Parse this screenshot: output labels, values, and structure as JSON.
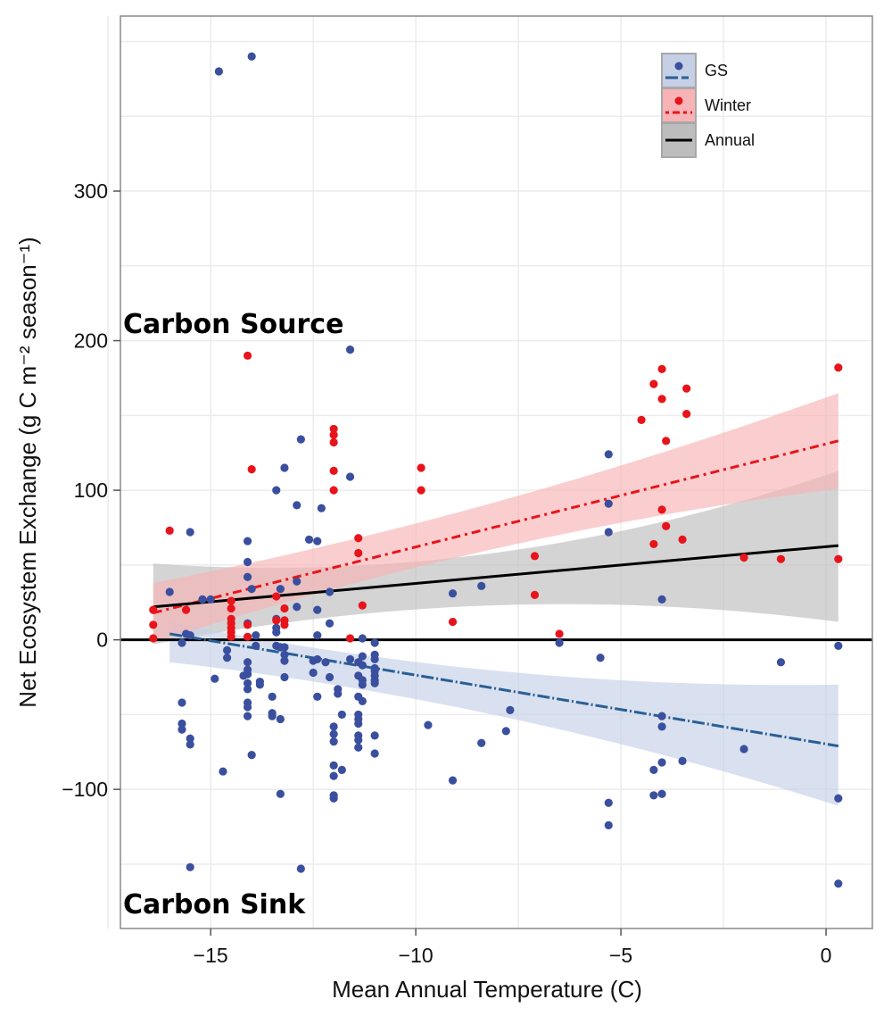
{
  "chart_data": {
    "type": "scatter",
    "title": "",
    "xlabel": "Mean Annual Temperature (C)",
    "ylabel": "Net Ecosystem Exchange (g C m⁻² season⁻¹)",
    "xlim": [
      -17.2,
      1.13
    ],
    "ylim": [
      -193,
      417
    ],
    "grid": true,
    "x_ticks": [
      -15,
      -10,
      -5,
      0
    ],
    "x_tick_labels": [
      "−15",
      "−10",
      "−5",
      "0"
    ],
    "y_ticks": [
      300,
      200,
      100,
      0,
      -100
    ],
    "y_tick_labels": [
      "300",
      "200",
      "100",
      "0",
      "−100"
    ],
    "legend_position": "top-right",
    "annotations": [
      {
        "text": "Carbon Source",
        "x": -17.0,
        "y": 205
      },
      {
        "text": "Carbon Sink",
        "x": -17.0,
        "y": -177
      }
    ],
    "reference_line_y": 0,
    "series": [
      {
        "name": "GS",
        "color": "#3a4f9e",
        "line_color": "#2a5f95",
        "band_color": "#c5cfe6",
        "fit": {
          "x": [
            -16.0,
            0.3
          ],
          "y": [
            4,
            -71
          ]
        },
        "band": {
          "x": [
            -16.0,
            -9.0,
            0.3
          ],
          "lower": [
            -15,
            -45,
            -111
          ],
          "upper": [
            12,
            -18,
            -30
          ]
        },
        "points": [
          [
            -14.8,
            380
          ],
          [
            -14.0,
            390
          ],
          [
            -11.6,
            194
          ],
          [
            -12.8,
            134
          ],
          [
            -13.2,
            115
          ],
          [
            -11.6,
            109
          ],
          [
            -13.4,
            100
          ],
          [
            -12.9,
            90
          ],
          [
            -12.3,
            88
          ],
          [
            -15.5,
            72
          ],
          [
            -14.1,
            66
          ],
          [
            -12.6,
            67
          ],
          [
            -12.4,
            66
          ],
          [
            -14.1,
            52
          ],
          [
            -14.1,
            42
          ],
          [
            -16.0,
            32
          ],
          [
            -12.9,
            39
          ],
          [
            -13.3,
            34
          ],
          [
            -14.0,
            34
          ],
          [
            -12.1,
            32
          ],
          [
            -15.2,
            27
          ],
          [
            -15.0,
            27
          ],
          [
            -12.9,
            22
          ],
          [
            -12.4,
            20
          ],
          [
            -12.1,
            11
          ],
          [
            -14.1,
            11
          ],
          [
            -13.4,
            14
          ],
          [
            -13.4,
            8
          ],
          [
            -13.4,
            5
          ],
          [
            -15.6,
            4
          ],
          [
            -15.5,
            3
          ],
          [
            -13.9,
            3
          ],
          [
            -12.4,
            3
          ],
          [
            -11.3,
            1
          ],
          [
            -11.0,
            -2
          ],
          [
            -15.7,
            -2
          ],
          [
            -14.6,
            -7
          ],
          [
            -14.6,
            -12
          ],
          [
            -13.9,
            -4
          ],
          [
            -14.1,
            -15
          ],
          [
            -14.1,
            -20
          ],
          [
            -14.1,
            -23
          ],
          [
            -14.2,
            -24
          ],
          [
            -14.9,
            -26
          ],
          [
            -14.1,
            -29
          ],
          [
            -14.1,
            -33
          ],
          [
            -13.8,
            -28
          ],
          [
            -13.8,
            -30
          ],
          [
            -13.4,
            -4
          ],
          [
            -13.3,
            -5
          ],
          [
            -13.2,
            -5
          ],
          [
            -13.2,
            -10
          ],
          [
            -13.2,
            -14
          ],
          [
            -13.2,
            -25
          ],
          [
            -13.5,
            -38
          ],
          [
            -12.4,
            -38
          ],
          [
            -12.5,
            -14
          ],
          [
            -12.4,
            -13
          ],
          [
            -12.2,
            -15
          ],
          [
            -12.5,
            -22
          ],
          [
            -12.1,
            -25
          ],
          [
            -11.9,
            -33
          ],
          [
            -11.9,
            -36
          ],
          [
            -11.6,
            -13
          ],
          [
            -11.3,
            -11
          ],
          [
            -11.3,
            -17
          ],
          [
            -11.4,
            -15
          ],
          [
            -11.4,
            -24
          ],
          [
            -11.3,
            -27
          ],
          [
            -11.3,
            -30
          ],
          [
            -11.0,
            -10
          ],
          [
            -11.0,
            -13
          ],
          [
            -11.0,
            -19
          ],
          [
            -11.0,
            -21
          ],
          [
            -11.0,
            -24
          ],
          [
            -11.0,
            -27
          ],
          [
            -11.0,
            -29
          ],
          [
            -11.4,
            -38
          ],
          [
            -11.3,
            -41
          ],
          [
            -15.7,
            -42
          ],
          [
            -14.1,
            -42
          ],
          [
            -14.1,
            -45
          ],
          [
            -14.1,
            -51
          ],
          [
            -13.5,
            -49
          ],
          [
            -13.5,
            -51
          ],
          [
            -13.3,
            -53
          ],
          [
            -11.8,
            -50
          ],
          [
            -11.4,
            -50
          ],
          [
            -11.4,
            -53
          ],
          [
            -11.4,
            -56
          ],
          [
            -12.0,
            -58
          ],
          [
            -12.0,
            -63
          ],
          [
            -12.0,
            -68
          ],
          [
            -11.4,
            -64
          ],
          [
            -11.4,
            -67
          ],
          [
            -11.4,
            -72
          ],
          [
            -11.0,
            -64
          ],
          [
            -11.0,
            -76
          ],
          [
            -15.7,
            -56
          ],
          [
            -15.7,
            -60
          ],
          [
            -15.5,
            -66
          ],
          [
            -15.5,
            -70
          ],
          [
            -14.0,
            -77
          ],
          [
            -14.7,
            -88
          ],
          [
            -12.0,
            -84
          ],
          [
            -12.0,
            -91
          ],
          [
            -11.8,
            -87
          ],
          [
            -13.3,
            -103
          ],
          [
            -12.0,
            -104
          ],
          [
            -12.0,
            -106
          ],
          [
            -15.5,
            -152
          ],
          [
            -12.8,
            -153
          ],
          [
            -5.3,
            124
          ],
          [
            -5.3,
            91
          ],
          [
            -5.3,
            72
          ],
          [
            -9.1,
            31
          ],
          [
            -8.4,
            36
          ],
          [
            -4.0,
            27
          ],
          [
            -6.5,
            -2
          ],
          [
            -5.5,
            -12
          ],
          [
            0.3,
            -4
          ],
          [
            -1.1,
            -15
          ],
          [
            -9.7,
            -57
          ],
          [
            -7.7,
            -47
          ],
          [
            -7.8,
            -61
          ],
          [
            -8.4,
            -69
          ],
          [
            -9.1,
            -94
          ],
          [
            -4.0,
            -51
          ],
          [
            -4.0,
            -58
          ],
          [
            -2.0,
            -73
          ],
          [
            -3.5,
            -81
          ],
          [
            -4.0,
            -82
          ],
          [
            -4.2,
            -87
          ],
          [
            -4.2,
            -104
          ],
          [
            -4.0,
            -103
          ],
          [
            0.3,
            -106
          ],
          [
            -5.3,
            -109
          ],
          [
            -5.3,
            -124
          ],
          [
            0.3,
            -163
          ]
        ]
      },
      {
        "name": "Winter",
        "color": "#e8141b",
        "line_color": "#e8141b",
        "band_color": "#f7b3b6",
        "fit": {
          "x": [
            -16.4,
            0.3
          ],
          "y": [
            18,
            133
          ]
        },
        "band": {
          "x": [
            -16.4,
            -9.0,
            0.3
          ],
          "lower": [
            -2,
            55,
            101
          ],
          "upper": [
            38,
            85,
            165
          ]
        },
        "points": [
          [
            -16.0,
            73
          ],
          [
            -16.4,
            20
          ],
          [
            -16.4,
            10
          ],
          [
            -16.4,
            1
          ],
          [
            -15.6,
            20
          ],
          [
            -14.5,
            26
          ],
          [
            -14.5,
            21
          ],
          [
            -14.5,
            14
          ],
          [
            -14.5,
            11
          ],
          [
            -14.5,
            8
          ],
          [
            -14.5,
            5
          ],
          [
            -14.5,
            2
          ],
          [
            -14.1,
            10
          ],
          [
            -14.1,
            2
          ],
          [
            -13.4,
            29
          ],
          [
            -13.4,
            13
          ],
          [
            -13.2,
            21
          ],
          [
            -13.2,
            13
          ],
          [
            -13.2,
            10
          ],
          [
            -11.4,
            68
          ],
          [
            -11.4,
            58
          ],
          [
            -11.3,
            23
          ],
          [
            -11.6,
            1
          ],
          [
            -14.1,
            190
          ],
          [
            -12.0,
            141
          ],
          [
            -12.0,
            137
          ],
          [
            -12.0,
            132
          ],
          [
            -14.0,
            114
          ],
          [
            -12.0,
            113
          ],
          [
            -12.0,
            100
          ],
          [
            -9.87,
            115
          ],
          [
            -9.87,
            100
          ],
          [
            -4.0,
            181
          ],
          [
            -4.2,
            171
          ],
          [
            -3.4,
            168
          ],
          [
            -4.0,
            161
          ],
          [
            -3.4,
            151
          ],
          [
            -4.5,
            147
          ],
          [
            -3.9,
            133
          ],
          [
            0.3,
            182
          ],
          [
            -4.0,
            87
          ],
          [
            -3.9,
            76
          ],
          [
            -3.5,
            67
          ],
          [
            -4.2,
            64
          ],
          [
            -7.1,
            56
          ],
          [
            -7.1,
            30
          ],
          [
            -9.1,
            12
          ],
          [
            -6.5,
            4
          ],
          [
            -2.0,
            55
          ],
          [
            -1.1,
            54
          ],
          [
            0.3,
            54
          ]
        ]
      },
      {
        "name": "Annual",
        "color": "#000000",
        "line_color": "#000000",
        "band_color": "#bdbdbd",
        "fit": {
          "x": [
            -16.4,
            0.3
          ],
          "y": [
            22,
            63
          ]
        },
        "band": {
          "x": [
            -16.4,
            -9.0,
            0.3
          ],
          "lower": [
            -3,
            22,
            12
          ],
          "upper": [
            51,
            55,
            113
          ]
        },
        "points": []
      }
    ]
  }
}
